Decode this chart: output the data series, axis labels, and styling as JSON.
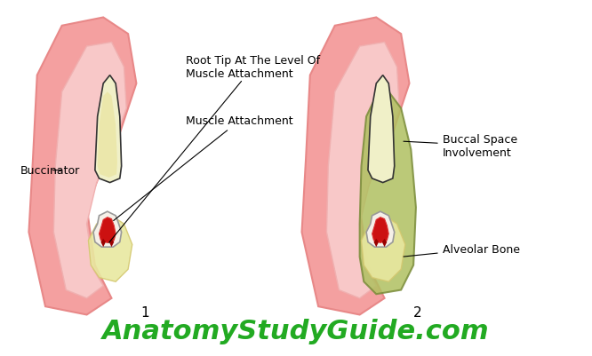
{
  "bg_color": "#ffffff",
  "figure_label1": "1",
  "figure_label2": "2",
  "website_text": "AnatomyStudyGuide.com",
  "website_color": "#22aa22",
  "website_fontsize": 22,
  "label_fontsize": 9,
  "annotations": {
    "root_tip": "Root Tip At The Level Of\nMuscle Attachment",
    "muscle_attachment": "Muscle Attachment",
    "buccinator": "Buccinator",
    "alveolar_bone": "Alveolar Bone",
    "buccal_space": "Buccal Space\nInvolvement"
  },
  "colors": {
    "outer_pink": "#f4a0a0",
    "inner_pink": "#f8c8c8",
    "yellow_green": "#e8e8a0",
    "dark_yellow": "#d4c870",
    "tooth_color": "#f0f0c8",
    "tooth_outline": "#333333",
    "red_dark": "#cc1111",
    "red_medium": "#dd3333",
    "bone_white": "#f5f0e8",
    "bone_outline": "#aaaaaa",
    "olive_green": "#7a8c3a",
    "olive_light": "#b0c060",
    "tan": "#c8a878",
    "dark_pink": "#e88888",
    "mid_pink": "#f0b0b0"
  }
}
